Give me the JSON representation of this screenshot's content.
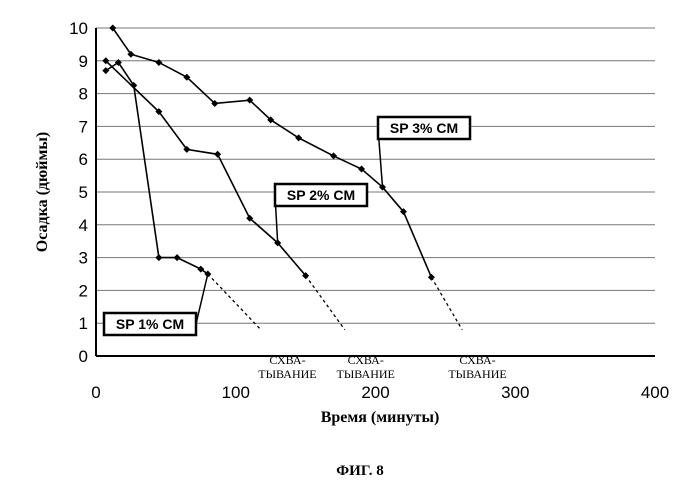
{
  "chart_data": {
    "type": "line",
    "title": "",
    "xlabel": "Время (минуты)",
    "ylabel": "Осадка (дюймы)",
    "xlim": [
      0,
      400
    ],
    "ylim": [
      0,
      10
    ],
    "xticks": [
      0,
      100,
      200,
      300,
      400
    ],
    "yticks": [
      0,
      1,
      2,
      3,
      4,
      5,
      6,
      7,
      8,
      9,
      10
    ],
    "grid": "horizontal",
    "series": [
      {
        "name": "SP 1% CM",
        "points": [
          [
            7,
            8.7
          ],
          [
            16,
            8.95
          ],
          [
            27,
            8.25
          ],
          [
            45,
            3.0
          ],
          [
            58,
            3.0
          ],
          [
            75,
            2.65
          ],
          [
            80,
            2.5
          ]
        ],
        "setting_end": [
          118,
          0.8
        ]
      },
      {
        "name": "SP 2% CM",
        "points": [
          [
            7,
            9.0
          ],
          [
            45,
            7.45
          ],
          [
            65,
            6.3
          ],
          [
            87,
            6.15
          ],
          [
            110,
            4.2
          ],
          [
            130,
            3.45
          ],
          [
            150,
            2.45
          ]
        ],
        "setting_end": [
          178,
          0.8
        ]
      },
      {
        "name": "SP 3% CM",
        "points": [
          [
            12,
            10.0
          ],
          [
            25,
            9.2
          ],
          [
            45,
            8.95
          ],
          [
            65,
            8.5
          ],
          [
            85,
            7.7
          ],
          [
            110,
            7.8
          ],
          [
            125,
            7.2
          ],
          [
            145,
            6.65
          ],
          [
            170,
            6.1
          ],
          [
            190,
            5.7
          ],
          [
            205,
            5.15
          ],
          [
            220,
            4.4
          ],
          [
            240,
            2.4
          ]
        ],
        "setting_end": [
          262,
          0.8
        ]
      }
    ],
    "annotations": [
      {
        "text": "СХВА-\nТЫВАНИЕ",
        "x": 137,
        "y": -0.25
      },
      {
        "text": "СХВА-\nТЫВАНИЕ",
        "x": 193,
        "y": -0.25
      },
      {
        "text": "СХВА-\nТЫВАНИЕ",
        "x": 273,
        "y": -0.25
      }
    ]
  },
  "figure_caption": "ФИГ. 8"
}
